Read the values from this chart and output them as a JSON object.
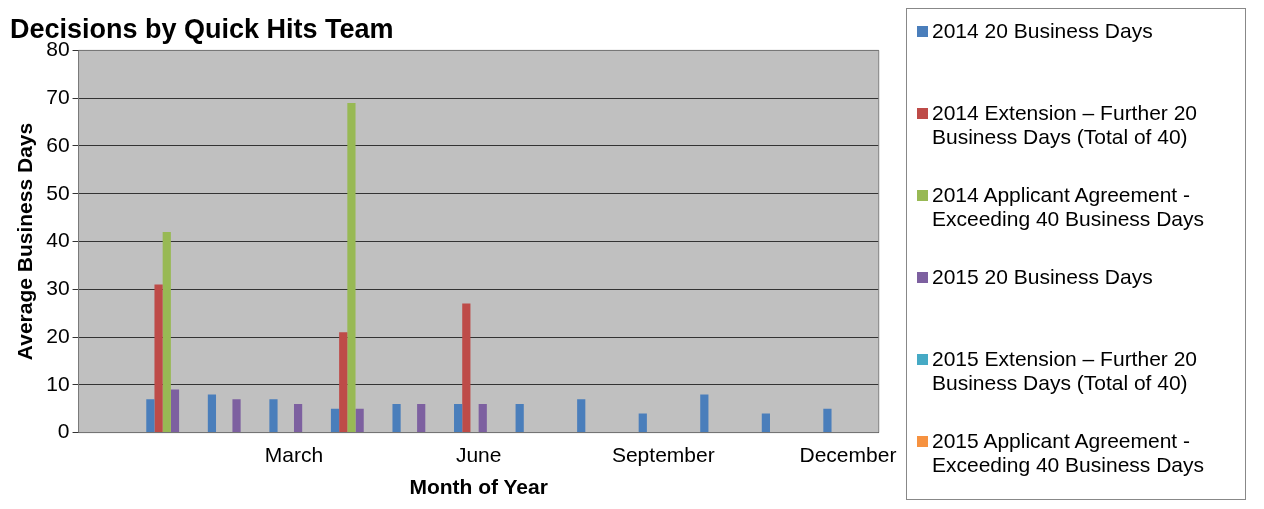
{
  "chart_data": {
    "type": "bar",
    "title": "Decisions by Quick Hits Team",
    "xlabel": "Month of Year",
    "ylabel": "Average Business Days",
    "categories": [
      null,
      null,
      null,
      "March",
      null,
      null,
      "June",
      null,
      null,
      "September",
      null,
      null,
      "December"
    ],
    "series": [
      {
        "name": "2014 20 Business Days",
        "color": "#4a7ebb",
        "values": [
          null,
          7,
          8,
          7,
          5,
          6,
          6,
          6,
          7,
          4,
          8,
          4,
          5
        ]
      },
      {
        "name": "2014 Extension – Further 20 Business Days (Total of 40)",
        "color": "#be4b48",
        "values": [
          null,
          31,
          null,
          null,
          21,
          null,
          27,
          null,
          null,
          null,
          null,
          null,
          null
        ]
      },
      {
        "name": "2014 Applicant Agreement - Exceeding 40 Business Days",
        "color": "#98b954",
        "values": [
          null,
          42,
          null,
          null,
          69,
          null,
          null,
          null,
          null,
          null,
          null,
          null,
          null
        ]
      },
      {
        "name": "2015 20 Business Days",
        "color": "#7d60a0",
        "values": [
          null,
          9,
          7,
          6,
          5,
          6,
          6,
          null,
          null,
          null,
          null,
          null,
          null
        ]
      },
      {
        "name": "2015 Extension – Further 20 Business Days (Total of 40)",
        "color": "#46aac5",
        "values": [
          null,
          null,
          null,
          null,
          null,
          null,
          null,
          null,
          null,
          null,
          null,
          null,
          null
        ]
      },
      {
        "name": "2015 Applicant Agreement - Exceeding 40 Business Days",
        "color": "#f69240",
        "values": [
          null,
          null,
          null,
          null,
          null,
          null,
          null,
          null,
          null,
          null,
          null,
          null,
          null
        ]
      }
    ],
    "ylim": [
      0,
      80
    ],
    "yticks": [
      0,
      10,
      20,
      30,
      40,
      50,
      60,
      70,
      80
    ],
    "grid": "y",
    "legend": "right"
  }
}
